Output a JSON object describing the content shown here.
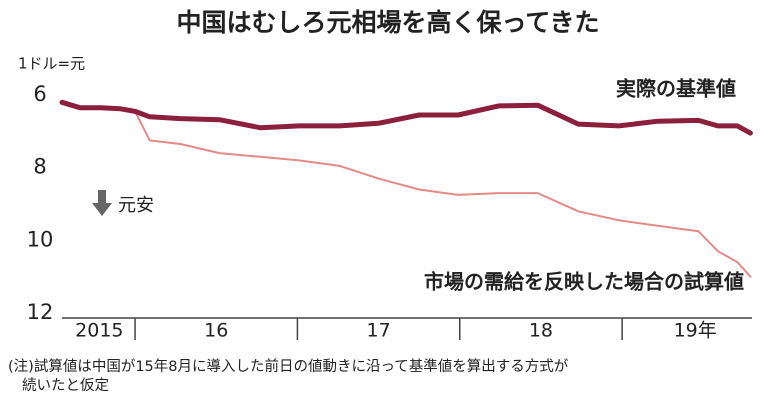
{
  "chart_data": {
    "type": "line",
    "title": "中国はむしろ元相場を高く保ってきた",
    "y_unit": "1ドル=元",
    "x": [
      2015.55,
      2015.66,
      2015.79,
      2015.91,
      2016.0,
      2016.09,
      2016.28,
      2016.52,
      2016.77,
      2017.01,
      2017.26,
      2017.5,
      2017.75,
      2017.99,
      2018.24,
      2018.48,
      2018.73,
      2018.98,
      2019.22,
      2019.47,
      2019.59,
      2019.71,
      2019.79
    ],
    "series": [
      {
        "name": "実際の基準値",
        "color": "#8c1f3c",
        "width": 5,
        "values": [
          6.2,
          6.35,
          6.35,
          6.38,
          6.45,
          6.6,
          6.65,
          6.68,
          6.9,
          6.85,
          6.85,
          6.78,
          6.55,
          6.55,
          6.3,
          6.28,
          6.8,
          6.85,
          6.72,
          6.7,
          6.85,
          6.85,
          7.05
        ]
      },
      {
        "name": "市場の需給を反映した場合の試算値",
        "color": "#e58a86",
        "width": 2,
        "values": [
          6.2,
          6.35,
          6.35,
          6.38,
          6.45,
          7.25,
          7.35,
          7.6,
          7.7,
          7.8,
          7.95,
          8.3,
          8.6,
          8.75,
          8.7,
          8.7,
          9.2,
          9.45,
          9.6,
          9.75,
          10.3,
          10.6,
          11.0
        ]
      }
    ],
    "xlim": [
      2015.55,
      2019.8
    ],
    "xticks": [
      2016,
      2017,
      2018,
      2019
    ],
    "year_labels": [
      {
        "value": 2015.78,
        "label": "2015"
      },
      {
        "value": 2016.5,
        "label": "16"
      },
      {
        "value": 2017.5,
        "label": "17"
      },
      {
        "value": 2018.5,
        "label": "18"
      },
      {
        "value": 2019.45,
        "label": "19年"
      }
    ],
    "ylim": [
      6,
      12
    ],
    "y_inverted": true,
    "yticks": [
      6,
      8,
      10,
      12
    ],
    "grid": false,
    "arrow_note": "元安",
    "note": [
      "(注)試算値は中国が15年8月に導入した前日の値動きに沿って基準値を算出する方式が",
      "続いたと仮定"
    ]
  }
}
